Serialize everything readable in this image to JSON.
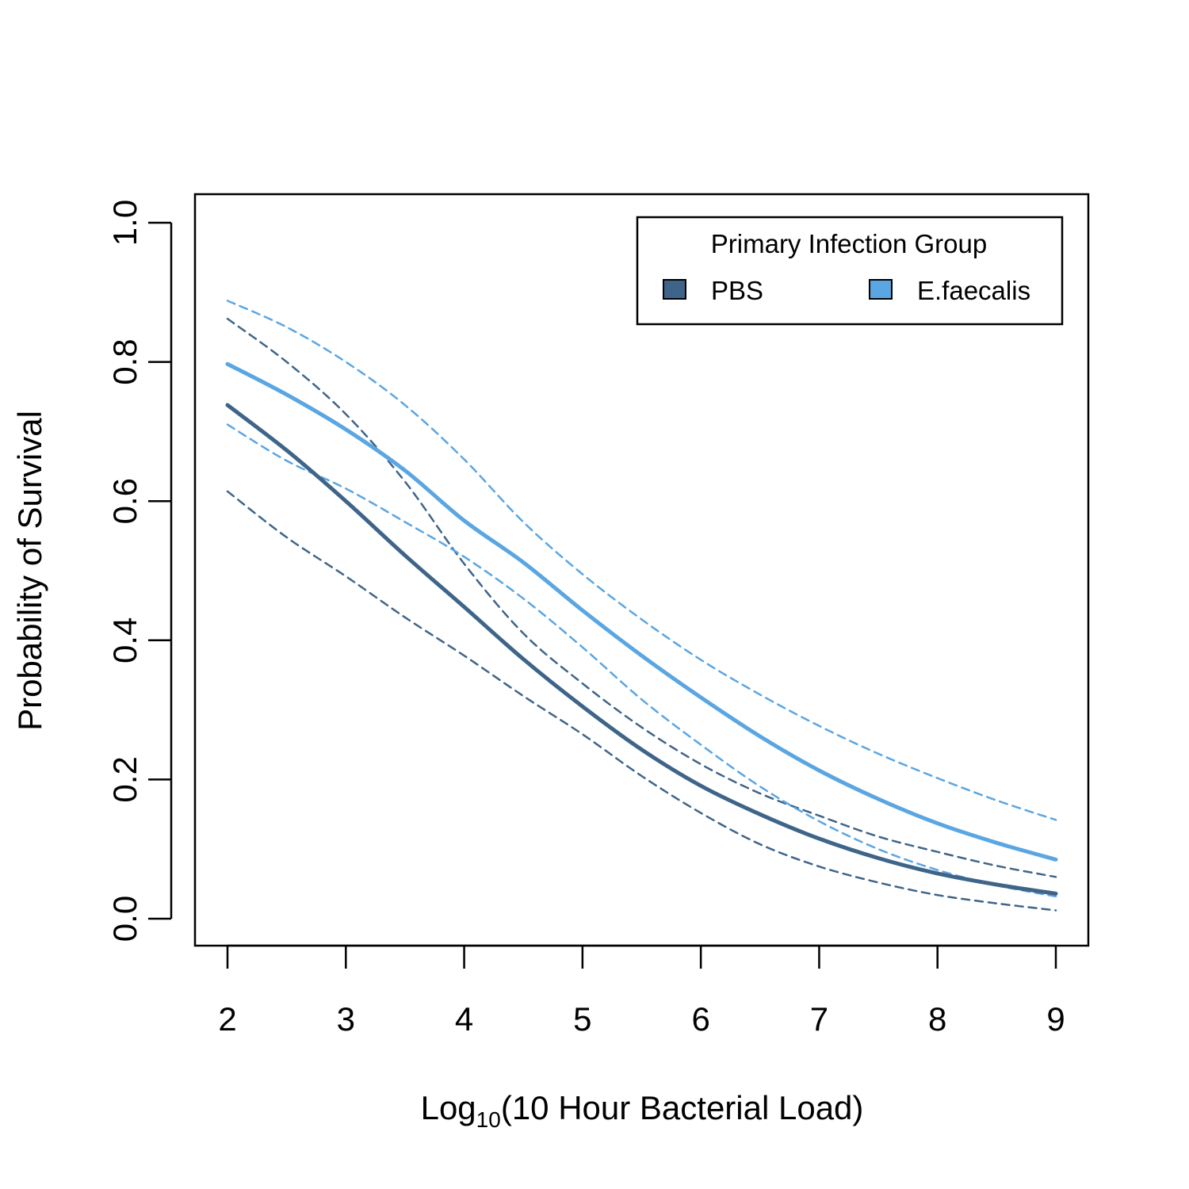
{
  "chart_data": {
    "type": "line",
    "xlabel": {
      "main": "Log",
      "sub": "10",
      "rest": "(10 Hour Bacterial Load)"
    },
    "ylabel": "Probability of Survival",
    "xlim": [
      2,
      9
    ],
    "ylim": [
      0,
      1
    ],
    "xticks": [
      2,
      3,
      4,
      5,
      6,
      7,
      8,
      9
    ],
    "yticks": [
      "0.0",
      "0.2",
      "0.4",
      "0.6",
      "0.8",
      "1.0"
    ],
    "grid": false,
    "legend": {
      "title": "Primary Infection Group",
      "position": "top-right",
      "entries": [
        {
          "label": "PBS",
          "color": "#3e6589"
        },
        {
          "label": "E.faecalis",
          "color": "#5aa6e2"
        }
      ]
    },
    "x": [
      2,
      2.5,
      3,
      3.5,
      4,
      4.5,
      5,
      5.5,
      6,
      6.5,
      7,
      7.5,
      8,
      8.5,
      9
    ],
    "series": [
      {
        "name": "PBS",
        "role": "fit",
        "color": "#3e6589",
        "values": [
          0.738,
          0.673,
          0.6,
          0.522,
          0.448,
          0.373,
          0.305,
          0.243,
          0.191,
          0.15,
          0.115,
          0.087,
          0.065,
          0.049,
          0.036
        ]
      },
      {
        "name": "PBS",
        "role": "upper",
        "color": "#3e6589",
        "values": [
          0.862,
          0.8,
          0.725,
          0.628,
          0.51,
          0.41,
          0.338,
          0.275,
          0.222,
          0.18,
          0.148,
          0.118,
          0.096,
          0.076,
          0.06
        ]
      },
      {
        "name": "PBS",
        "role": "lower",
        "color": "#3e6589",
        "values": [
          0.614,
          0.548,
          0.492,
          0.433,
          0.378,
          0.32,
          0.265,
          0.205,
          0.152,
          0.107,
          0.075,
          0.052,
          0.034,
          0.022,
          0.012
        ]
      },
      {
        "name": "E.faecalis",
        "role": "fit",
        "color": "#5aa6e2",
        "values": [
          0.797,
          0.753,
          0.703,
          0.644,
          0.572,
          0.512,
          0.443,
          0.378,
          0.318,
          0.262,
          0.213,
          0.172,
          0.137,
          0.109,
          0.085
        ]
      },
      {
        "name": "E.faecalis",
        "role": "upper",
        "color": "#5aa6e2",
        "values": [
          0.888,
          0.85,
          0.8,
          0.738,
          0.66,
          0.57,
          0.495,
          0.43,
          0.372,
          0.322,
          0.277,
          0.237,
          0.202,
          0.17,
          0.142
        ]
      },
      {
        "name": "E.faecalis",
        "role": "lower",
        "color": "#5aa6e2",
        "values": [
          0.71,
          0.658,
          0.618,
          0.57,
          0.52,
          0.46,
          0.39,
          0.315,
          0.25,
          0.19,
          0.14,
          0.1,
          0.07,
          0.048,
          0.032
        ]
      }
    ]
  }
}
